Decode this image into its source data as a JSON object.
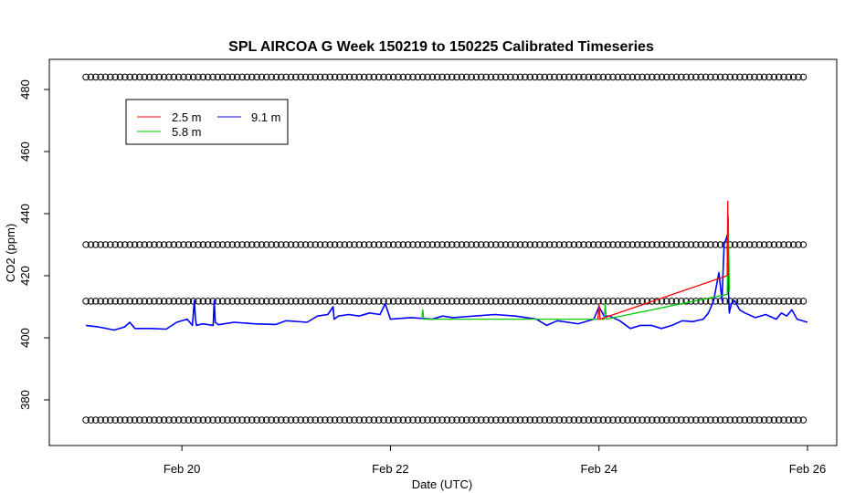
{
  "chart_data": {
    "type": "line",
    "title": "SPL AIRCOA G  Week 150219 to 150225  Calibrated Timeseries",
    "xlabel": "Date (UTC)",
    "ylabel": "CO2 (ppm)",
    "x_unit": "days since Feb 19 00:00 UTC",
    "xlim": [
      19.0,
      26.0
    ],
    "ylim": [
      370,
      485
    ],
    "x_ticks": [
      {
        "value": 20,
        "label": "Feb 20"
      },
      {
        "value": 22,
        "label": "Feb 22"
      },
      {
        "value": 24,
        "label": "Feb 24"
      },
      {
        "value": 26,
        "label": "Feb 26"
      }
    ],
    "y_ticks": [
      {
        "value": 380,
        "label": "380"
      },
      {
        "value": 400,
        "label": "400"
      },
      {
        "value": 420,
        "label": "420"
      },
      {
        "value": 440,
        "label": "440"
      },
      {
        "value": 460,
        "label": "460"
      },
      {
        "value": 480,
        "label": "480"
      }
    ],
    "grid": false,
    "legend": {
      "position": "top-left",
      "entries": [
        {
          "name": "2.5 m",
          "color": "#ff0000"
        },
        {
          "name": "5.8 m",
          "color": "#00cc00"
        },
        {
          "name": "9.1 m",
          "color": "#0000ff"
        }
      ]
    },
    "series": [
      {
        "name": "9.1 m",
        "color": "#0000ff",
        "x": [
          19.08,
          19.2,
          19.35,
          19.45,
          19.5,
          19.55,
          19.7,
          19.85,
          19.95,
          20.05,
          20.1,
          20.12,
          20.13,
          20.14,
          20.2,
          20.3,
          20.31,
          20.32,
          20.35,
          20.5,
          20.7,
          20.9,
          21.0,
          21.2,
          21.3,
          21.4,
          21.45,
          21.46,
          21.5,
          21.6,
          21.7,
          21.8,
          21.9,
          21.95,
          22.0,
          22.2,
          22.4,
          22.5,
          22.6,
          22.8,
          23.0,
          23.2,
          23.4,
          23.5,
          23.6,
          23.7,
          23.8,
          23.95,
          24.0,
          24.05,
          24.1,
          24.2,
          24.3,
          24.4,
          24.5,
          24.6,
          24.7,
          24.8,
          24.9,
          25.0,
          25.05,
          25.1,
          25.15,
          25.18,
          25.2,
          25.22,
          25.23,
          25.24,
          25.25,
          25.27,
          25.3,
          25.35,
          25.4,
          25.5,
          25.6,
          25.7,
          25.75,
          25.8,
          25.85,
          25.9,
          26.0
        ],
        "values": [
          404,
          403.5,
          402.5,
          403.5,
          405,
          403,
          403,
          402.8,
          405,
          406,
          404,
          412,
          406,
          404,
          404.5,
          404,
          412,
          405,
          404.2,
          405,
          404.5,
          404.3,
          405.5,
          405,
          407,
          407.5,
          410,
          406,
          407,
          407.5,
          407,
          408,
          407.5,
          411,
          406,
          406.5,
          406,
          407,
          406.5,
          407,
          407.5,
          407,
          406,
          404,
          405.5,
          405,
          404.5,
          406,
          410,
          407,
          407,
          405.5,
          403,
          404,
          404,
          403,
          404,
          405.5,
          405.2,
          406,
          408,
          412,
          421,
          412,
          430,
          432,
          433,
          416,
          408,
          411,
          412,
          409,
          408,
          406.5,
          407.5,
          406,
          408,
          407,
          409,
          406,
          405
        ]
      },
      {
        "name": "5.8 m",
        "color": "#00cc00",
        "x": [
          22.3,
          22.31,
          22.32,
          24.05,
          24.06,
          24.07,
          25.23,
          25.24,
          25.25
        ],
        "values": [
          406,
          409,
          406,
          406,
          411,
          406,
          414,
          439,
          415
        ]
      },
      {
        "name": "2.5 m",
        "color": "#ff0000",
        "x": [
          23.99,
          24.0,
          24.01,
          25.23,
          25.235,
          25.24
        ],
        "values": [
          406,
          411,
          406,
          420,
          444,
          420
        ]
      }
    ],
    "markers": {
      "symbol": "o",
      "rows_y": [
        484,
        430,
        411.8,
        373.5
      ],
      "x_start": 19.08,
      "x_end": 26.0
    }
  }
}
